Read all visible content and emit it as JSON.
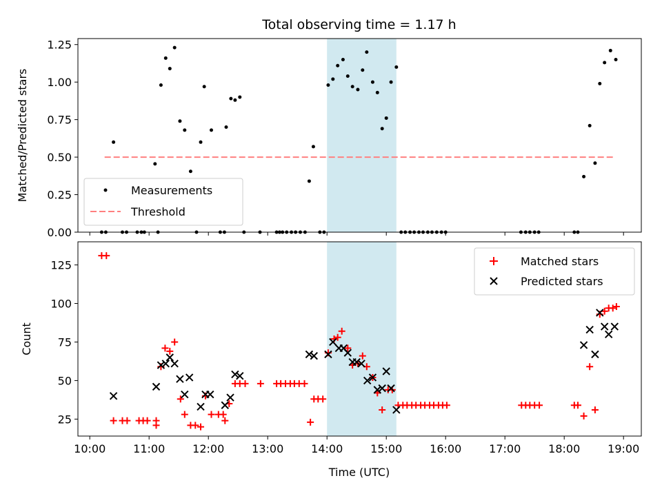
{
  "chart_data": {
    "title": "Total observing time = 1.17 h",
    "xlabel": "Time (UTC)",
    "x_tick_labels": [
      "10:00",
      "11:00",
      "12:00",
      "13:00",
      "14:00",
      "15:00",
      "16:00",
      "17:00",
      "18:00",
      "19:00"
    ],
    "x_ticks_hours": [
      10,
      11,
      12,
      13,
      14,
      15,
      16,
      17,
      18,
      19
    ],
    "xlim_hours": [
      9.8,
      19.3
    ],
    "observing_window_hours": [
      14.0,
      15.17
    ],
    "observing_window_color": "#d1e9f0",
    "panels": [
      {
        "type": "scatter",
        "ylabel": "Matched/Predicted stars",
        "ylim": [
          0,
          1.29
        ],
        "y_ticks": [
          0,
          0.25,
          0.5,
          0.75,
          1.0,
          1.25
        ],
        "y_tick_labels": [
          "0.00",
          "0.25",
          "0.50",
          "0.75",
          "1.00",
          "1.25"
        ],
        "legend_position": "lower-left",
        "threshold": {
          "name": "Threshold",
          "value": 0.5,
          "x_range": [
            10.25,
            18.85
          ],
          "color": "#ff7f7f"
        },
        "series": [
          {
            "name": "Measurements",
            "color": "#000000",
            "points": [
              [
                10.2,
                0
              ],
              [
                10.27,
                0
              ],
              [
                10.4,
                0.6
              ],
              [
                10.55,
                0
              ],
              [
                10.62,
                0
              ],
              [
                10.8,
                0
              ],
              [
                10.87,
                0
              ],
              [
                10.92,
                0
              ],
              [
                11.1,
                0.455
              ],
              [
                11.15,
                0
              ],
              [
                11.2,
                0.98
              ],
              [
                11.28,
                1.16
              ],
              [
                11.35,
                1.09
              ],
              [
                11.43,
                1.23
              ],
              [
                11.52,
                0.74
              ],
              [
                11.6,
                0.68
              ],
              [
                11.7,
                0.405
              ],
              [
                11.8,
                0
              ],
              [
                11.87,
                0.6
              ],
              [
                11.93,
                0.97
              ],
              [
                12.05,
                0.68
              ],
              [
                12.2,
                0
              ],
              [
                12.27,
                0
              ],
              [
                12.3,
                0.7
              ],
              [
                12.38,
                0.89
              ],
              [
                12.45,
                0.88
              ],
              [
                12.53,
                0.9
              ],
              [
                12.6,
                0
              ],
              [
                12.87,
                0
              ],
              [
                13.15,
                0
              ],
              [
                13.2,
                0
              ],
              [
                13.25,
                0
              ],
              [
                13.32,
                0
              ],
              [
                13.4,
                0
              ],
              [
                13.47,
                0
              ],
              [
                13.55,
                0
              ],
              [
                13.63,
                0
              ],
              [
                13.7,
                0.34
              ],
              [
                13.77,
                0.57
              ],
              [
                13.88,
                0
              ],
              [
                13.95,
                0
              ],
              [
                14.02,
                0.98
              ],
              [
                14.1,
                1.02
              ],
              [
                14.18,
                1.11
              ],
              [
                14.27,
                1.15
              ],
              [
                14.35,
                1.04
              ],
              [
                14.43,
                0.97
              ],
              [
                14.52,
                0.95
              ],
              [
                14.6,
                1.08
              ],
              [
                14.67,
                1.2
              ],
              [
                14.77,
                1.0
              ],
              [
                14.85,
                0.93
              ],
              [
                14.93,
                0.69
              ],
              [
                15.0,
                0.76
              ],
              [
                15.08,
                1.0
              ],
              [
                15.17,
                1.1
              ],
              [
                15.25,
                0
              ],
              [
                15.32,
                0
              ],
              [
                15.4,
                0
              ],
              [
                15.47,
                0
              ],
              [
                15.55,
                0
              ],
              [
                15.62,
                0
              ],
              [
                15.7,
                0
              ],
              [
                15.77,
                0
              ],
              [
                15.85,
                0
              ],
              [
                15.93,
                0
              ],
              [
                16.0,
                0
              ],
              [
                17.27,
                0
              ],
              [
                17.35,
                0
              ],
              [
                17.42,
                0
              ],
              [
                17.5,
                0
              ],
              [
                17.57,
                0
              ],
              [
                18.17,
                0
              ],
              [
                18.23,
                0
              ],
              [
                18.33,
                0.37
              ],
              [
                18.43,
                0.71
              ],
              [
                18.52,
                0.46
              ],
              [
                18.6,
                0.99
              ],
              [
                18.68,
                1.13
              ],
              [
                18.78,
                1.21
              ],
              [
                18.87,
                1.15
              ]
            ]
          }
        ]
      },
      {
        "type": "scatter",
        "ylabel": "Count",
        "ylim": [
          14,
          140
        ],
        "y_ticks": [
          25,
          50,
          75,
          100,
          125
        ],
        "y_tick_labels": [
          "25",
          "50",
          "75",
          "100",
          "125"
        ],
        "legend_position": "upper-right",
        "series": [
          {
            "name": "Matched stars",
            "marker": "+",
            "color": "#ff0000",
            "points": [
              [
                10.2,
                131
              ],
              [
                10.28,
                131
              ],
              [
                10.4,
                24
              ],
              [
                10.55,
                24
              ],
              [
                10.63,
                24
              ],
              [
                10.83,
                24
              ],
              [
                10.9,
                24
              ],
              [
                10.97,
                24
              ],
              [
                11.12,
                24
              ],
              [
                11.12,
                21
              ],
              [
                11.2,
                59
              ],
              [
                11.27,
                71
              ],
              [
                11.35,
                69
              ],
              [
                11.43,
                75
              ],
              [
                11.53,
                38
              ],
              [
                11.6,
                28
              ],
              [
                11.7,
                21
              ],
              [
                11.78,
                21
              ],
              [
                11.87,
                20
              ],
              [
                11.95,
                40
              ],
              [
                12.05,
                28
              ],
              [
                12.17,
                28
              ],
              [
                12.25,
                28
              ],
              [
                12.28,
                24
              ],
              [
                12.35,
                35
              ],
              [
                12.45,
                48
              ],
              [
                12.53,
                48
              ],
              [
                12.62,
                48
              ],
              [
                12.88,
                48
              ],
              [
                13.15,
                48
              ],
              [
                13.22,
                48
              ],
              [
                13.3,
                48
              ],
              [
                13.38,
                48
              ],
              [
                13.45,
                48
              ],
              [
                13.53,
                48
              ],
              [
                13.62,
                48
              ],
              [
                13.72,
                23
              ],
              [
                13.78,
                38
              ],
              [
                13.85,
                38
              ],
              [
                13.93,
                38
              ],
              [
                14.02,
                68
              ],
              [
                14.12,
                77
              ],
              [
                14.18,
                78
              ],
              [
                14.25,
                82
              ],
              [
                14.35,
                71
              ],
              [
                14.43,
                60
              ],
              [
                14.52,
                61
              ],
              [
                14.6,
                66
              ],
              [
                14.67,
                59
              ],
              [
                14.77,
                52
              ],
              [
                14.85,
                42
              ],
              [
                14.93,
                31
              ],
              [
                15.03,
                44
              ],
              [
                15.1,
                44
              ],
              [
                15.2,
                34
              ],
              [
                15.28,
                34
              ],
              [
                15.35,
                34
              ],
              [
                15.43,
                34
              ],
              [
                15.5,
                34
              ],
              [
                15.58,
                34
              ],
              [
                15.65,
                34
              ],
              [
                15.73,
                34
              ],
              [
                15.8,
                34
              ],
              [
                15.88,
                34
              ],
              [
                15.95,
                34
              ],
              [
                16.02,
                34
              ],
              [
                17.28,
                34
              ],
              [
                17.35,
                34
              ],
              [
                17.42,
                34
              ],
              [
                17.5,
                34
              ],
              [
                17.58,
                34
              ],
              [
                18.17,
                34
              ],
              [
                18.23,
                34
              ],
              [
                18.33,
                27
              ],
              [
                18.43,
                59
              ],
              [
                18.52,
                31
              ],
              [
                18.6,
                93
              ],
              [
                18.68,
                95
              ],
              [
                18.75,
                97
              ],
              [
                18.82,
                97
              ],
              [
                18.88,
                98
              ]
            ]
          },
          {
            "name": "Predicted stars",
            "marker": "x",
            "color": "#000000",
            "points": [
              [
                10.4,
                40
              ],
              [
                11.12,
                46
              ],
              [
                11.2,
                60
              ],
              [
                11.28,
                61
              ],
              [
                11.35,
                65
              ],
              [
                11.43,
                61
              ],
              [
                11.52,
                51
              ],
              [
                11.6,
                41
              ],
              [
                11.68,
                52
              ],
              [
                11.87,
                33
              ],
              [
                11.95,
                41
              ],
              [
                12.03,
                41
              ],
              [
                12.28,
                34
              ],
              [
                12.37,
                39
              ],
              [
                12.45,
                54
              ],
              [
                12.53,
                53
              ],
              [
                13.7,
                67
              ],
              [
                13.78,
                66
              ],
              [
                14.02,
                67
              ],
              [
                14.1,
                75
              ],
              [
                14.2,
                71
              ],
              [
                14.28,
                71
              ],
              [
                14.35,
                68
              ],
              [
                14.43,
                62
              ],
              [
                14.5,
                62
              ],
              [
                14.58,
                61
              ],
              [
                14.68,
                50
              ],
              [
                14.77,
                52
              ],
              [
                14.85,
                44
              ],
              [
                14.93,
                45
              ],
              [
                15.0,
                56
              ],
              [
                15.08,
                45
              ],
              [
                15.17,
                31
              ],
              [
                18.33,
                73
              ],
              [
                18.43,
                83
              ],
              [
                18.52,
                67
              ],
              [
                18.6,
                94
              ],
              [
                18.68,
                85
              ],
              [
                18.75,
                80
              ],
              [
                18.85,
                85
              ]
            ]
          }
        ]
      }
    ]
  }
}
